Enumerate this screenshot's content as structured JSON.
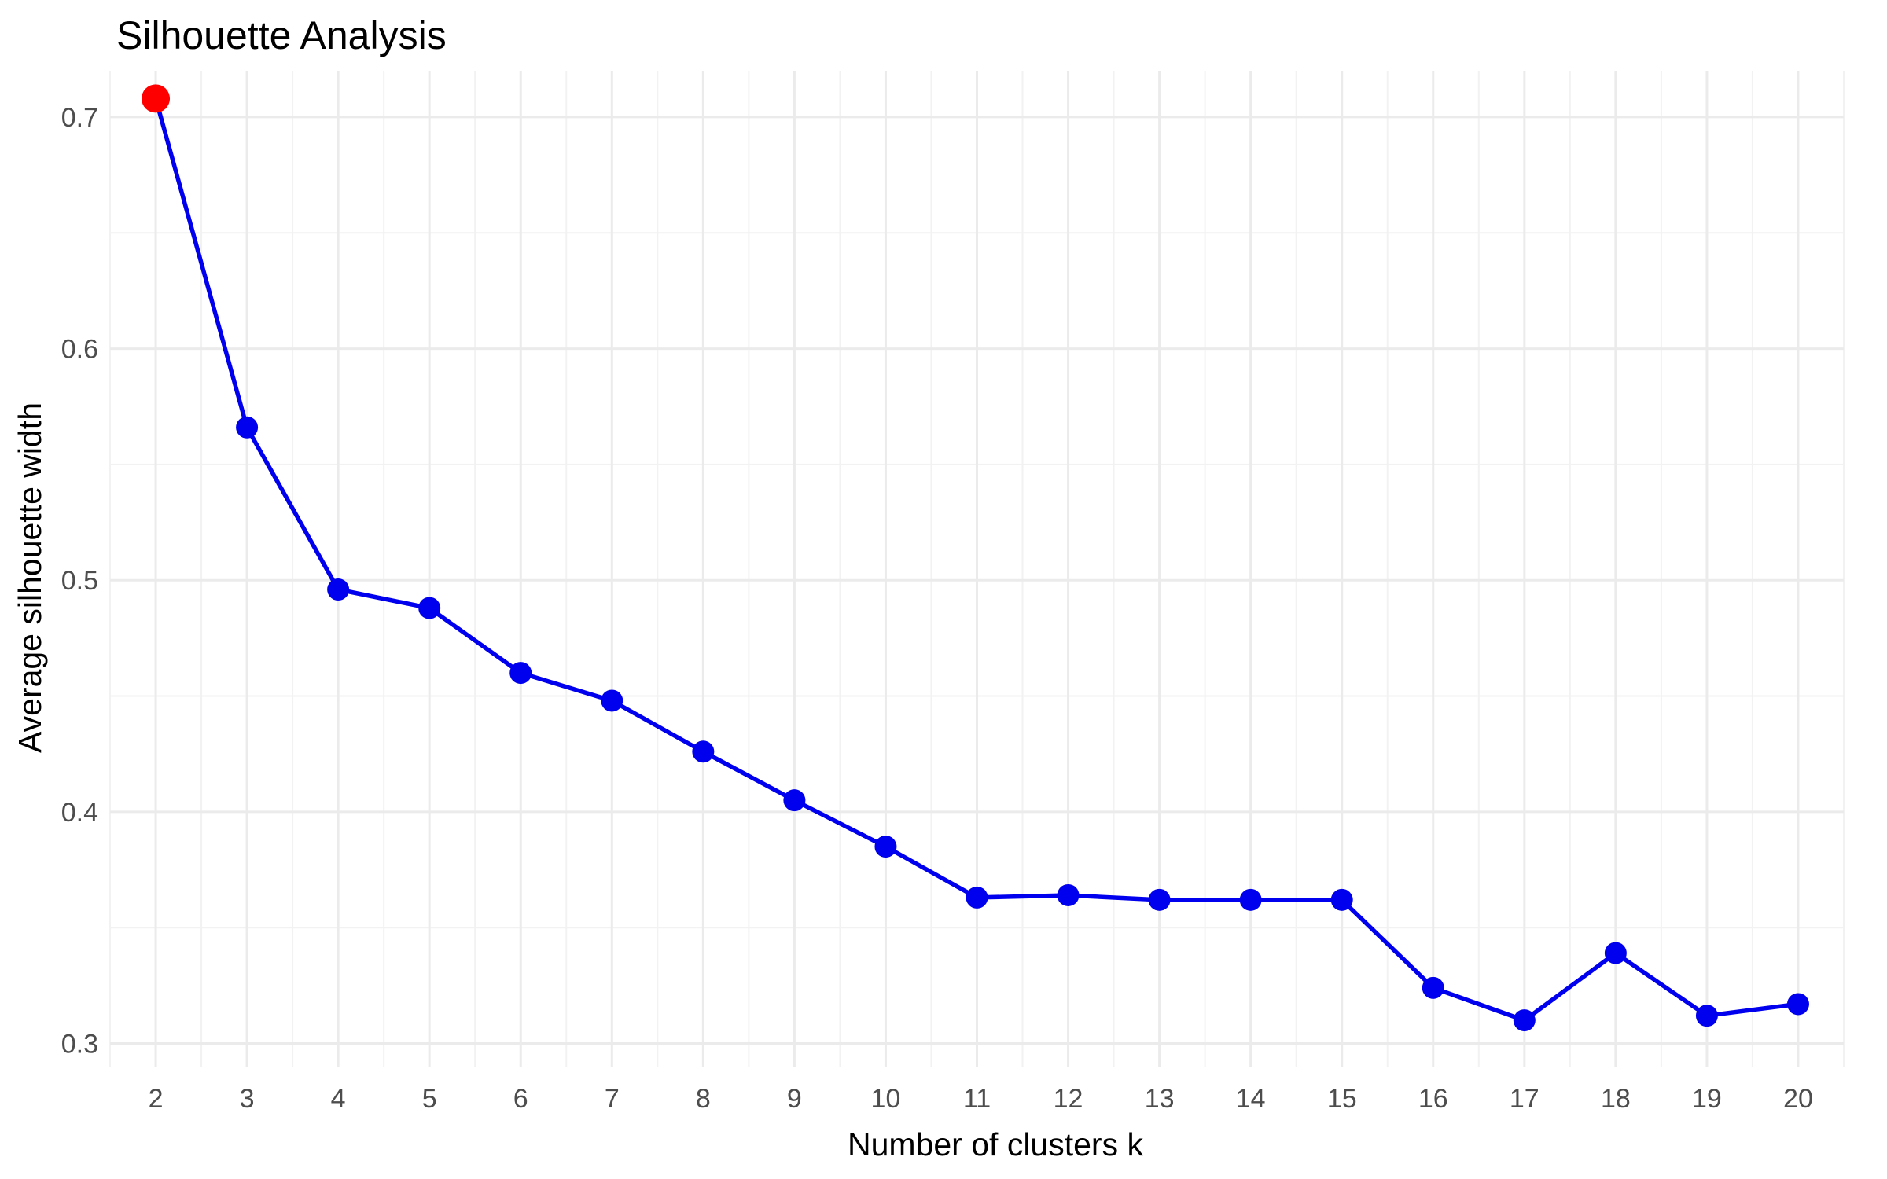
{
  "chart_data": {
    "type": "line",
    "title": "Silhouette Analysis",
    "xlabel": "Number of clusters k",
    "ylabel": "Average silhouette width",
    "x": [
      2,
      3,
      4,
      5,
      6,
      7,
      8,
      9,
      10,
      11,
      12,
      13,
      14,
      15,
      16,
      17,
      18,
      19,
      20
    ],
    "series": [
      {
        "name": "Average silhouette width",
        "values": [
          0.708,
          0.566,
          0.496,
          0.488,
          0.46,
          0.448,
          0.426,
          0.405,
          0.385,
          0.363,
          0.364,
          0.362,
          0.362,
          0.362,
          0.324,
          0.31,
          0.339,
          0.312,
          0.317
        ]
      }
    ],
    "highlight": {
      "x": 2,
      "value": 0.708,
      "label": "maximum"
    },
    "xlim": [
      1.5,
      20.5
    ],
    "ylim": [
      0.29,
      0.72
    ],
    "yticks": [
      0.3,
      0.4,
      0.5,
      0.6,
      0.7
    ],
    "ytick_labels": [
      "0.3",
      "0.4",
      "0.5",
      "0.6",
      "0.7"
    ],
    "xticks": [
      2,
      3,
      4,
      5,
      6,
      7,
      8,
      9,
      10,
      11,
      12,
      13,
      14,
      15,
      16,
      17,
      18,
      19,
      20
    ],
    "xtick_labels": [
      "2",
      "3",
      "4",
      "5",
      "6",
      "7",
      "8",
      "9",
      "10",
      "11",
      "12",
      "13",
      "14",
      "15",
      "16",
      "17",
      "18",
      "19",
      "20"
    ],
    "grid": true,
    "legend": "none"
  },
  "colors": {
    "line": "#0000ee",
    "point": "#0000ee",
    "highlight_point": "#ff0000",
    "grid_major": "#ebebeb",
    "grid_minor": "#f2f2f2"
  }
}
